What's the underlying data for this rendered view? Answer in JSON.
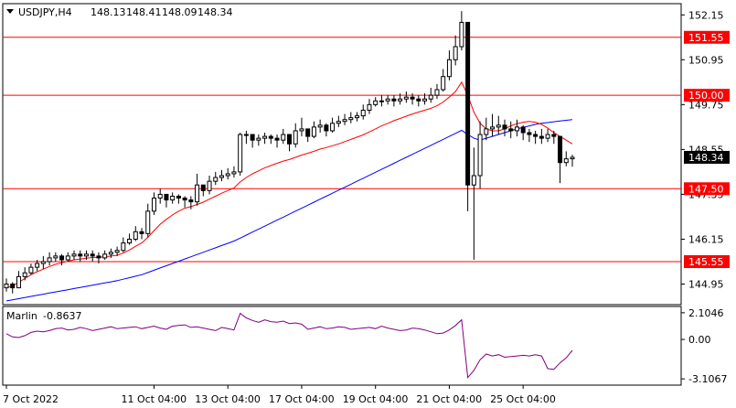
{
  "header": {
    "symbol": "USDJPY,H4",
    "open": "148.13",
    "high": "148.41",
    "low": "148.09",
    "close": "148.34"
  },
  "indicator": {
    "name": "Marlin",
    "value": "-0.8637",
    "levels": [
      "2.1046",
      "0.00",
      "-3.1067"
    ]
  },
  "colors": {
    "bull_fill": "#ffffff",
    "bear_fill": "#000000",
    "level_line": "#ff0000",
    "ma_fast": "#ff0000",
    "ma_slow": "#0000ff",
    "oscillator": "#800080"
  },
  "chart_data": {
    "type": "candlestick",
    "price_axis_ticks": [
      "152.15",
      "150.95",
      "149.75",
      "148.55",
      "147.35",
      "146.15",
      "144.95"
    ],
    "price_ylim": [
      144.4,
      152.45
    ],
    "time_axis_ticks": [
      "7 Oct 2022",
      "11 Oct 04:00",
      "13 Oct 04:00",
      "17 Oct 04:00",
      "19 Oct 04:00",
      "21 Oct 04:00",
      "25 Oct 04:00"
    ],
    "levels": [
      {
        "value": 151.55,
        "label": "151.55"
      },
      {
        "value": 150.0,
        "label": "150.00"
      },
      {
        "value": 147.5,
        "label": "147.50"
      },
      {
        "value": 145.55,
        "label": "145.55"
      }
    ],
    "current_price": {
      "value": 148.34,
      "label": "148.34"
    },
    "candles_close": [
      144.95,
      144.85,
      145.15,
      145.25,
      145.4,
      145.5,
      145.55,
      145.65,
      145.7,
      145.6,
      145.7,
      145.75,
      145.7,
      145.75,
      145.7,
      145.65,
      145.75,
      145.8,
      145.85,
      146.05,
      146.15,
      146.35,
      146.3,
      146.9,
      147.25,
      147.35,
      147.2,
      147.3,
      147.25,
      147.2,
      147.15,
      147.6,
      147.45,
      147.7,
      147.8,
      147.85,
      147.9,
      147.95,
      148.95,
      148.95,
      148.8,
      148.85,
      148.9,
      148.85,
      148.8,
      148.95,
      148.7,
      149.05,
      149.1,
      148.9,
      149.15,
      149.2,
      149.05,
      149.25,
      149.3,
      149.35,
      149.4,
      149.45,
      149.6,
      149.75,
      149.85,
      149.85,
      149.9,
      149.85,
      149.9,
      149.95,
      149.9,
      149.85,
      149.9,
      150.0,
      150.15,
      150.5,
      150.95,
      151.3,
      151.95,
      147.6,
      147.85,
      148.95,
      149.1,
      149.15,
      149.2,
      149.1,
      149.05,
      149.15,
      149.0,
      148.95,
      148.9,
      148.85,
      148.95,
      148.9,
      148.2,
      148.3,
      148.34
    ],
    "candles_high": [
      145.1,
      145.0,
      145.3,
      145.4,
      145.5,
      145.6,
      145.7,
      145.8,
      145.8,
      145.75,
      145.8,
      145.85,
      145.85,
      145.85,
      145.85,
      145.8,
      145.85,
      145.9,
      145.95,
      146.2,
      146.3,
      146.5,
      146.45,
      147.1,
      147.4,
      147.5,
      147.3,
      147.4,
      147.35,
      147.3,
      147.3,
      147.9,
      147.6,
      147.85,
      147.95,
      148.0,
      148.05,
      148.1,
      149.0,
      149.05,
      148.95,
      148.95,
      149.0,
      148.95,
      148.95,
      149.1,
      148.95,
      149.25,
      149.4,
      149.1,
      149.3,
      149.35,
      149.25,
      149.4,
      149.45,
      149.5,
      149.55,
      149.55,
      149.75,
      149.9,
      149.95,
      150.0,
      150.0,
      150.0,
      150.05,
      150.1,
      150.05,
      150.0,
      150.05,
      150.2,
      150.3,
      150.7,
      151.2,
      151.6,
      152.25,
      151.95,
      148.6,
      149.3,
      149.4,
      149.5,
      149.45,
      149.35,
      149.3,
      149.35,
      149.2,
      149.1,
      149.05,
      149.1,
      149.1,
      149.05,
      148.6,
      148.5,
      148.41
    ],
    "candles_low": [
      144.75,
      144.7,
      144.9,
      145.05,
      145.2,
      145.3,
      145.35,
      145.45,
      145.55,
      145.45,
      145.55,
      145.6,
      145.55,
      145.6,
      145.55,
      145.5,
      145.6,
      145.65,
      145.7,
      145.8,
      146.0,
      146.1,
      146.15,
      146.2,
      146.8,
      147.1,
      147.0,
      147.1,
      147.1,
      147.0,
      146.95,
      147.05,
      147.3,
      147.35,
      147.6,
      147.7,
      147.75,
      147.8,
      147.85,
      148.7,
      148.6,
      148.65,
      148.7,
      148.7,
      148.6,
      148.7,
      148.5,
      148.6,
      148.9,
      148.75,
      148.85,
      149.0,
      148.9,
      149.0,
      149.15,
      149.2,
      149.25,
      149.3,
      149.35,
      149.5,
      149.7,
      149.7,
      149.75,
      149.7,
      149.75,
      149.8,
      149.75,
      149.7,
      149.75,
      149.8,
      149.9,
      150.1,
      150.4,
      150.8,
      151.2,
      146.9,
      145.6,
      147.5,
      148.8,
      148.9,
      148.95,
      148.9,
      148.85,
      148.9,
      148.8,
      148.75,
      148.7,
      148.7,
      148.75,
      148.7,
      147.65,
      148.1,
      148.09
    ],
    "ma_fast": [
      144.85,
      144.9,
      145.0,
      145.1,
      145.2,
      145.28,
      145.35,
      145.42,
      145.48,
      145.52,
      145.56,
      145.6,
      145.62,
      145.64,
      145.66,
      145.67,
      145.68,
      145.7,
      145.72,
      145.78,
      145.86,
      145.96,
      146.05,
      146.2,
      146.38,
      146.55,
      146.68,
      146.8,
      146.9,
      146.98,
      147.02,
      147.08,
      147.14,
      147.22,
      147.3,
      147.38,
      147.45,
      147.52,
      147.68,
      147.8,
      147.9,
      147.98,
      148.06,
      148.12,
      148.18,
      148.24,
      148.28,
      148.34,
      148.4,
      148.45,
      148.5,
      148.56,
      148.6,
      148.65,
      148.7,
      148.76,
      148.82,
      148.88,
      148.94,
      149.02,
      149.1,
      149.18,
      149.25,
      149.32,
      149.38,
      149.44,
      149.5,
      149.55,
      149.6,
      149.65,
      149.72,
      149.82,
      149.95,
      150.1,
      150.35,
      150.0,
      149.55,
      149.25,
      149.1,
      149.05,
      149.05,
      149.1,
      149.18,
      149.24,
      149.28,
      149.3,
      149.28,
      149.22,
      149.12,
      149.0,
      148.9,
      148.8,
      148.7
    ],
    "ma_slow": [
      144.5,
      144.53,
      144.56,
      144.59,
      144.62,
      144.65,
      144.68,
      144.71,
      144.74,
      144.77,
      144.8,
      144.83,
      144.86,
      144.89,
      144.92,
      144.95,
      144.98,
      145.01,
      145.04,
      145.08,
      145.12,
      145.16,
      145.2,
      145.26,
      145.32,
      145.38,
      145.44,
      145.5,
      145.56,
      145.62,
      145.68,
      145.74,
      145.8,
      145.86,
      145.92,
      145.98,
      146.04,
      146.1,
      146.18,
      146.26,
      146.34,
      146.42,
      146.5,
      146.58,
      146.66,
      146.74,
      146.82,
      146.9,
      146.98,
      147.06,
      147.14,
      147.22,
      147.3,
      147.38,
      147.46,
      147.54,
      147.62,
      147.7,
      147.78,
      147.86,
      147.94,
      148.02,
      148.1,
      148.18,
      148.26,
      148.34,
      148.42,
      148.5,
      148.58,
      148.66,
      148.74,
      148.82,
      148.9,
      148.98,
      149.06,
      148.95,
      148.85,
      148.8,
      148.85,
      148.9,
      148.95,
      149.0,
      149.05,
      149.1,
      149.14,
      149.18,
      149.22,
      149.25,
      149.27,
      149.29,
      149.31,
      149.33,
      149.35
    ],
    "osc_ylim": [
      -3.6,
      2.6
    ],
    "oscillator": [
      0.45,
      0.2,
      0.15,
      0.3,
      0.55,
      0.65,
      0.6,
      0.7,
      0.85,
      0.9,
      0.75,
      0.8,
      0.95,
      0.85,
      0.7,
      0.8,
      0.9,
      1.0,
      0.85,
      0.9,
      0.95,
      1.0,
      0.85,
      0.95,
      1.05,
      0.9,
      0.8,
      1.05,
      1.1,
      1.15,
      0.95,
      1.0,
      0.9,
      0.8,
      0.7,
      0.95,
      0.85,
      0.75,
      2.05,
      1.7,
      1.5,
      1.35,
      1.55,
      1.4,
      1.35,
      1.45,
      1.25,
      1.3,
      1.2,
      0.8,
      0.9,
      1.0,
      0.85,
      0.9,
      1.0,
      0.95,
      0.8,
      0.85,
      0.9,
      0.95,
      0.85,
      1.05,
      0.9,
      0.8,
      0.7,
      0.75,
      0.9,
      0.85,
      0.75,
      0.6,
      0.45,
      0.5,
      0.75,
      1.1,
      1.55,
      -3.0,
      -2.45,
      -1.6,
      -1.15,
      -1.3,
      -1.2,
      -1.4,
      -1.35,
      -1.3,
      -1.25,
      -1.3,
      -1.2,
      -1.3,
      -2.3,
      -2.35,
      -1.85,
      -1.45,
      -0.86
    ]
  }
}
